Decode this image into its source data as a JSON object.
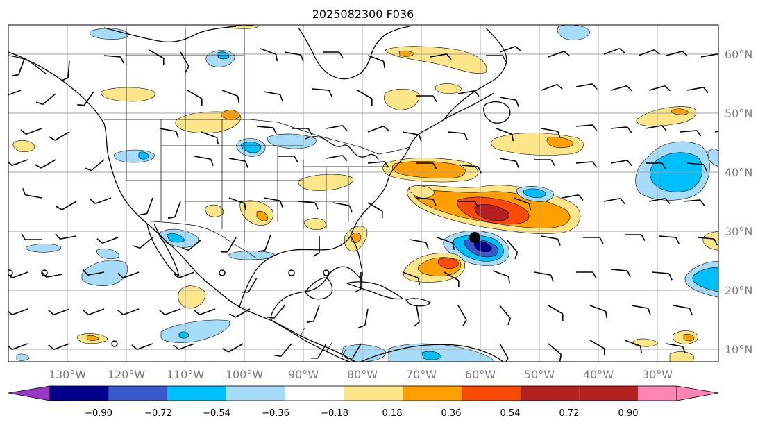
{
  "title": "2025082300 F036",
  "colors": {
    "below_min": "#9a38c6",
    "c1": "#00008b",
    "c2": "#3a5acc",
    "c3": "#00bfff",
    "c4": "#a6dcf8",
    "c5": "#ffffff",
    "c6": "#fde68a",
    "c7": "#ff9f00",
    "c8": "#fa4a0a",
    "c9": "#b22222",
    "above_max": "#ff86b4"
  },
  "colorbar": {
    "levels": [
      -0.9,
      -0.72,
      -0.54,
      -0.36,
      -0.18,
      0.18,
      0.36,
      0.54,
      0.72,
      0.9
    ],
    "tick_labels": [
      "−0.90",
      "−0.72",
      "−0.54",
      "−0.36",
      "−0.18",
      "0.18",
      "0.36",
      "0.54",
      "0.72",
      "0.90"
    ]
  },
  "lat_labels": [
    "60°N",
    "50°N",
    "40°N",
    "30°N",
    "20°N",
    "10°N"
  ],
  "lon_labels": [
    "130°W",
    "120°W",
    "110°W",
    "100°W",
    "90°W",
    "80°W",
    "70°W",
    "60°W",
    "50°W",
    "40°W",
    "30°W"
  ]
}
